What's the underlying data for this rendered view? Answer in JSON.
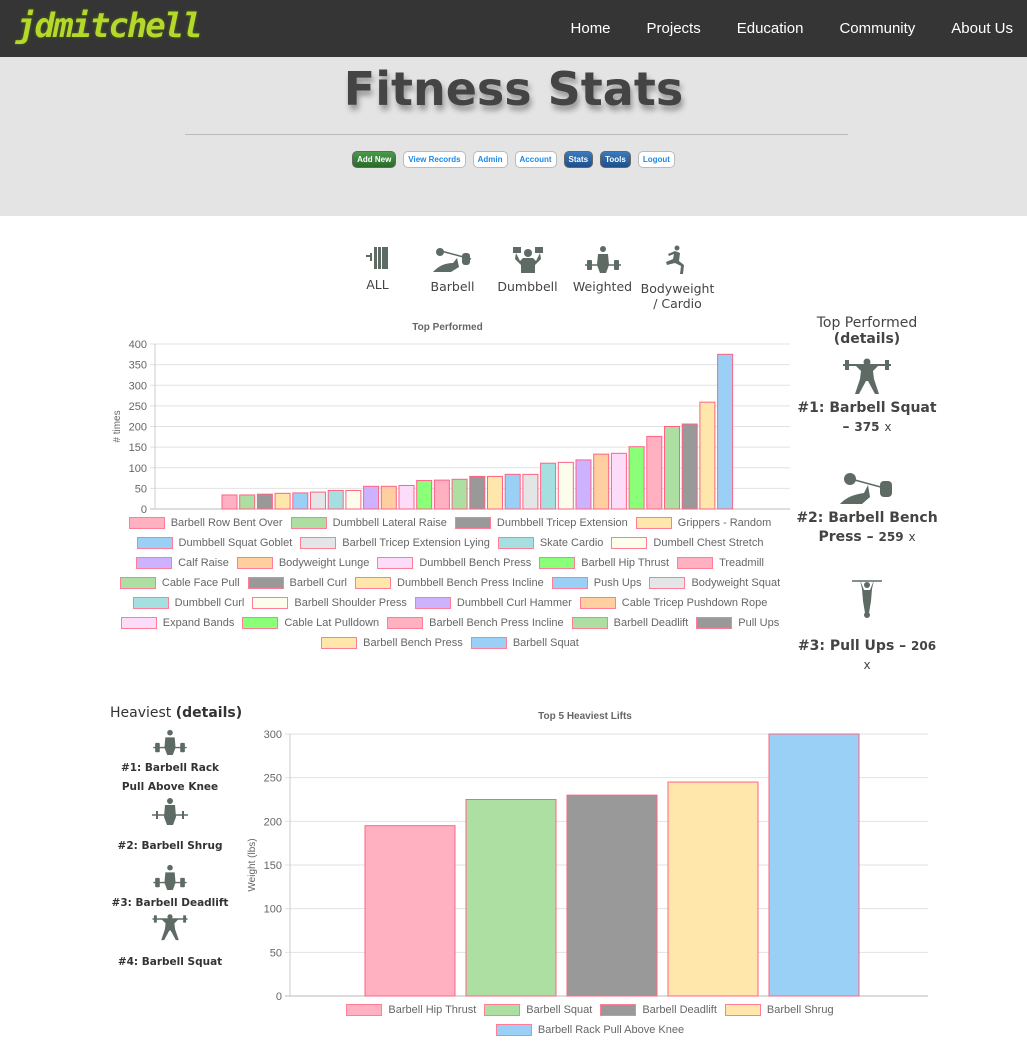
{
  "header": {
    "logo": "jdmitchell",
    "nav": [
      "Home",
      "Projects",
      "Education",
      "Community",
      "About Us"
    ]
  },
  "page": {
    "title": "Fitness Stats",
    "buttons": [
      {
        "label": "Add New",
        "style": "green"
      },
      {
        "label": "View Records",
        "style": "white"
      },
      {
        "label": "Admin",
        "style": "white"
      },
      {
        "label": "Account",
        "style": "white"
      },
      {
        "label": "Stats",
        "style": "blue"
      },
      {
        "label": "Tools",
        "style": "blue"
      },
      {
        "label": "Logout",
        "style": "white"
      }
    ]
  },
  "categories": [
    {
      "label": "ALL",
      "icon": "plates-icon"
    },
    {
      "label": "Barbell",
      "icon": "bench-press-icon"
    },
    {
      "label": "Dumbbell",
      "icon": "dumbbell-press-icon"
    },
    {
      "label": "Weighted",
      "icon": "deadlift-icon"
    },
    {
      "label": "Bodyweight / Cardio",
      "icon": "lunge-icon"
    }
  ],
  "colors": {
    "bg": [
      "#ffb1c1",
      "#addfa2",
      "#999999",
      "#ffe6aa",
      "#9ad0f5",
      "#e4e5e7",
      "#a5dfdf",
      "#fdfdec",
      "#ccb2ff",
      "#ffcf9f",
      "#fcdcf9",
      "#8aff78"
    ],
    "border": "#ff6384",
    "header": "#353535",
    "band": "#e4e4e4"
  },
  "chart_data": [
    {
      "type": "bar",
      "title": "Top Performed",
      "xlabel": "",
      "ylabel": "# times",
      "ylim": [
        0,
        400
      ],
      "yticks": [
        0,
        50,
        100,
        150,
        200,
        250,
        300,
        350,
        400
      ],
      "grid": true,
      "legend": "bottom",
      "categories": [
        "Barbell Row Bent Over",
        "Dumbbell Lateral Raise",
        "Dumbbell Tricep Extension",
        "Grippers - Random",
        "Dumbbell Squat Goblet",
        "Barbell Tricep Extension Lying",
        "Skate Cardio",
        "Dumbell Chest Stretch",
        "Calf Raise",
        "Bodyweight Lunge",
        "Dumbbell Bench Press",
        "Barbell Hip Thrust",
        "Treadmill",
        "Cable Face Pull",
        "Barbell Curl",
        "Dumbbell Bench Press Incline",
        "Push Ups",
        "Bodyweight Squat",
        "Dumbbell Curl",
        "Barbell Shoulder Press",
        "Dumbbell Curl Hammer",
        "Cable Tricep Pushdown Rope",
        "Expand Bands",
        "Cable Lat Pulldown",
        "Barbell Bench Press Incline",
        "Barbell Deadlift",
        "Pull Ups",
        "Barbell Bench Press",
        "Barbell Squat"
      ],
      "values": [
        34,
        34,
        36,
        38,
        39,
        41,
        45,
        45,
        55,
        55,
        57,
        69,
        70,
        72,
        79,
        79,
        84,
        84,
        111,
        113,
        119,
        133,
        135,
        151,
        176,
        200,
        206,
        259,
        375
      ]
    },
    {
      "type": "bar",
      "title": "Top 5 Heaviest Lifts",
      "xlabel": "",
      "ylabel": "Weight (lbs)",
      "ylim": [
        0,
        300
      ],
      "yticks": [
        0,
        50,
        100,
        150,
        200,
        250,
        300
      ],
      "grid": true,
      "legend": "bottom",
      "categories": [
        "Barbell Hip Thrust",
        "Barbell Squat",
        "Barbell Deadlift",
        "Barbell Shrug",
        "Barbell Rack Pull Above Knee"
      ],
      "values": [
        195,
        225,
        230,
        245,
        300
      ]
    }
  ],
  "top_performed": {
    "heading": "Top Performed",
    "details": "(details)",
    "items": [
      {
        "rank": "#1: Barbell Squat",
        "count": "375",
        "unit": "x",
        "icon": "squat-icon"
      },
      {
        "rank": "#2: Barbell Bench Press",
        "count": "259",
        "unit": "x",
        "icon": "bench-press-icon"
      },
      {
        "rank": "#3: Pull Ups",
        "count": "206",
        "unit": "x",
        "icon": "pull-up-icon"
      }
    ]
  },
  "heaviest": {
    "heading": "Heaviest",
    "details": "(details)",
    "items": [
      {
        "rank": "#1: Barbell Rack Pull Above Knee",
        "icon": "deadlift-icon"
      },
      {
        "rank": "#2: Barbell Shrug",
        "icon": "shrug-icon"
      },
      {
        "rank": "#3: Barbell Deadlift",
        "icon": "deadlift-icon"
      },
      {
        "rank": "#4: Barbell Squat",
        "icon": "squat-icon"
      }
    ]
  }
}
